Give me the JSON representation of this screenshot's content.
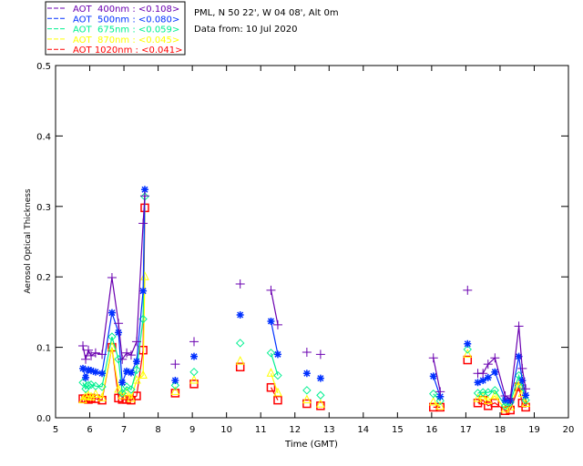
{
  "header": {
    "site": "PML, N 50 22', W 04 08', Alt 0m",
    "date": "Data from: 10 Jul 2020"
  },
  "chart_data": {
    "type": "scatter",
    "title": "",
    "xlabel": "Time (GMT)",
    "ylabel": "Aerosol Optical Thickness",
    "xlim": [
      5,
      20
    ],
    "ylim": [
      0,
      0.5
    ],
    "xticks": [
      "5",
      "6",
      "7",
      "8",
      "9",
      "10",
      "11",
      "12",
      "13",
      "14",
      "15",
      "16",
      "17",
      "18",
      "19",
      "20"
    ],
    "yticks": [
      "0.0",
      "0.1",
      "0.2",
      "0.3",
      "0.4",
      "0.5"
    ],
    "legend_placement": "top-left, outside",
    "x": [
      5.8,
      5.88,
      5.96,
      6.04,
      6.17,
      6.36,
      6.65,
      6.84,
      6.95,
      7.08,
      7.21,
      7.37,
      7.56,
      7.61,
      8.5,
      9.05,
      10.4,
      11.3,
      11.5,
      12.35,
      12.75,
      16.05,
      16.25,
      17.05,
      17.35,
      17.5,
      17.65,
      17.85,
      18.15,
      18.3,
      18.55,
      18.65,
      18.75
    ],
    "series": [
      {
        "name": "AOT  400nm : <0.108>",
        "color": "#6a00b0",
        "marker": "plus",
        "values": [
          0.102,
          0.083,
          0.096,
          0.088,
          0.092,
          0.09,
          0.199,
          0.134,
          0.083,
          0.092,
          0.089,
          0.108,
          0.276,
          0.315,
          0.076,
          0.108,
          0.19,
          0.181,
          0.132,
          0.093,
          0.09,
          0.085,
          0.037,
          0.181,
          0.063,
          0.063,
          0.076,
          0.085,
          0.031,
          0.027,
          0.13,
          0.07,
          0.041
        ]
      },
      {
        "name": "AOT  500nm : <0.080>",
        "color": "#0030ff",
        "marker": "asterisk",
        "values": [
          0.07,
          0.057,
          0.068,
          0.067,
          0.065,
          0.063,
          0.149,
          0.121,
          0.05,
          0.066,
          0.064,
          0.08,
          0.18,
          0.324,
          0.053,
          0.087,
          0.146,
          0.137,
          0.09,
          0.063,
          0.056,
          0.059,
          0.03,
          0.105,
          0.05,
          0.053,
          0.057,
          0.065,
          0.025,
          0.024,
          0.087,
          0.053,
          0.032
        ]
      },
      {
        "name": "AOT  675nm : <0.059>",
        "color": "#00f090",
        "marker": "diamond",
        "values": [
          0.05,
          0.041,
          0.046,
          0.047,
          0.045,
          0.044,
          0.115,
          0.083,
          0.035,
          0.044,
          0.04,
          0.068,
          0.14,
          0.314,
          0.046,
          0.065,
          0.106,
          0.092,
          0.06,
          0.039,
          0.032,
          0.034,
          0.024,
          0.097,
          0.035,
          0.036,
          0.036,
          0.039,
          0.017,
          0.022,
          0.06,
          0.044,
          0.025
        ]
      },
      {
        "name": "AOT  870nm : <0.045>",
        "color": "#ffff00",
        "marker": "triangle",
        "values": [
          0.025,
          0.03,
          0.031,
          0.029,
          0.033,
          0.028,
          0.1,
          0.04,
          0.031,
          0.035,
          0.027,
          0.053,
          0.06,
          0.2,
          0.037,
          0.053,
          0.08,
          0.063,
          0.035,
          0.025,
          0.019,
          0.022,
          0.016,
          0.09,
          0.027,
          0.03,
          0.024,
          0.031,
          0.012,
          0.015,
          0.051,
          0.034,
          0.02
        ]
      },
      {
        "name": "AOT 1020nm : <0.041>",
        "color": "#ff0000",
        "marker": "square",
        "values": [
          0.027,
          0.027,
          0.026,
          0.028,
          0.027,
          0.025,
          0.1,
          0.028,
          0.026,
          0.026,
          0.025,
          0.031,
          0.096,
          0.298,
          0.035,
          0.048,
          0.072,
          0.043,
          0.025,
          0.02,
          0.017,
          0.015,
          0.015,
          0.082,
          0.021,
          0.025,
          0.017,
          0.021,
          0.01,
          0.011,
          0.044,
          0.021,
          0.015
        ]
      }
    ]
  }
}
